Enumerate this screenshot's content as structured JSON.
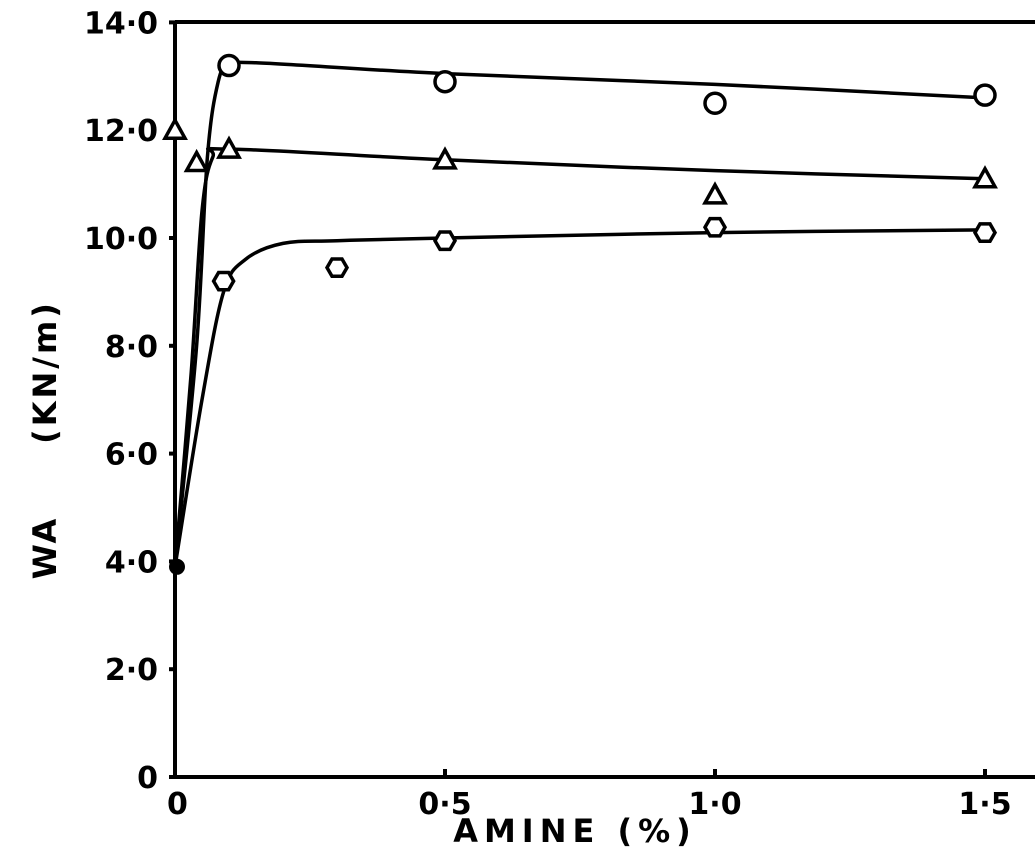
{
  "chart_data": {
    "type": "line",
    "title": "",
    "xlabel": "AMINE (%)",
    "ylabel_main": "WA",
    "ylabel_unit": "(KN/m)",
    "xlim": [
      0,
      1.55
    ],
    "ylim": [
      0,
      14
    ],
    "x_ticks": [
      {
        "value": 0,
        "label": "0"
      },
      {
        "value": 0.5,
        "label": "0·5"
      },
      {
        "value": 1.0,
        "label": "1·0"
      },
      {
        "value": 1.5,
        "label": "1·5"
      }
    ],
    "y_ticks": [
      {
        "value": 0,
        "label": "0"
      },
      {
        "value": 2,
        "label": "2·0"
      },
      {
        "value": 4,
        "label": "4·0"
      },
      {
        "value": 6,
        "label": "6·0"
      },
      {
        "value": 8,
        "label": "8·0"
      },
      {
        "value": 10,
        "label": "10·0"
      },
      {
        "value": 12,
        "label": "12·0"
      },
      {
        "value": 14,
        "label": "14·0"
      }
    ],
    "grid": false,
    "series": [
      {
        "marker": "circle",
        "points": [
          [
            0.1,
            13.2
          ],
          [
            0.5,
            12.9
          ],
          [
            1.0,
            12.5
          ],
          [
            1.5,
            12.65
          ]
        ],
        "curve": [
          [
            0,
            3.9
          ],
          [
            0.04,
            8.0
          ],
          [
            0.06,
            11.5
          ],
          [
            0.08,
            12.9
          ],
          [
            0.1,
            13.2
          ],
          [
            0.15,
            13.25
          ],
          [
            0.5,
            13.05
          ],
          [
            1.0,
            12.85
          ],
          [
            1.5,
            12.6
          ]
        ]
      },
      {
        "marker": "triangle",
        "points": [
          [
            0,
            12.0
          ],
          [
            0.04,
            11.4
          ],
          [
            0.1,
            11.65
          ],
          [
            0.5,
            11.45
          ],
          [
            1.0,
            10.8
          ],
          [
            1.5,
            11.1
          ]
        ],
        "curve": [
          [
            0,
            3.9
          ],
          [
            0.03,
            7.5
          ],
          [
            0.05,
            10.5
          ],
          [
            0.07,
            11.5
          ],
          [
            0.1,
            11.65
          ],
          [
            0.5,
            11.45
          ],
          [
            1.0,
            11.25
          ],
          [
            1.5,
            11.1
          ]
        ]
      },
      {
        "marker": "hexagon",
        "points": [
          [
            0.09,
            9.2
          ],
          [
            0.3,
            9.45
          ],
          [
            0.5,
            9.95
          ],
          [
            1.0,
            10.2
          ],
          [
            1.5,
            10.1
          ]
        ],
        "curve": [
          [
            0,
            3.9
          ],
          [
            0.05,
            7.0
          ],
          [
            0.09,
            9.0
          ],
          [
            0.13,
            9.6
          ],
          [
            0.2,
            9.9
          ],
          [
            0.3,
            9.95
          ],
          [
            0.5,
            10.0
          ],
          [
            1.0,
            10.1
          ],
          [
            1.5,
            10.15
          ]
        ]
      }
    ],
    "origin_point": {
      "x": 0,
      "y": 3.9,
      "marker": "filled-circle"
    }
  }
}
